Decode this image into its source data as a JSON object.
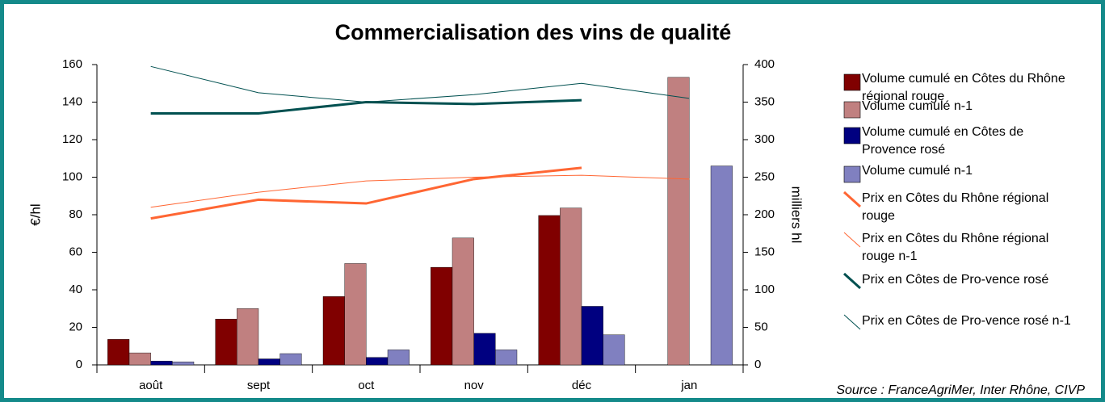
{
  "chart_data": {
    "type": "bar-line",
    "title": "Commercialisation des vins de qualité",
    "source": "Source : FranceAgriMer, Inter Rhône, CIVP",
    "ylabel": "€/hl",
    "y2label": "milliers hl",
    "categories": [
      "août",
      "sept",
      "oct",
      "nov",
      "déc",
      "jan"
    ],
    "ylim": [
      0,
      160
    ],
    "yticks": [
      0,
      20,
      40,
      60,
      80,
      100,
      120,
      140,
      160
    ],
    "y2lim": [
      0,
      400
    ],
    "y2ticks": [
      0,
      50,
      100,
      150,
      200,
      250,
      300,
      350,
      400
    ],
    "series": [
      {
        "name": "Volume cumulé en Côtes du Rhône régional rouge",
        "type": "bar",
        "axis": "y2",
        "color": "#800000",
        "values": [
          34,
          61,
          91,
          130,
          199,
          null
        ]
      },
      {
        "name": "Volume cumulé n-1",
        "type": "bar",
        "axis": "y2",
        "color": "#c08080",
        "values": [
          16,
          75,
          135,
          169,
          209,
          383
        ]
      },
      {
        "name": "Volume cumulé en Côtes de Provence rosé",
        "type": "bar",
        "axis": "y2",
        "color": "#000080",
        "values": [
          5,
          8,
          10,
          42,
          78,
          null
        ]
      },
      {
        "name": "Volume cumulé n-1",
        "type": "bar",
        "axis": "y2",
        "color": "#8080c0",
        "values": [
          4,
          15,
          20,
          20,
          40,
          265
        ]
      },
      {
        "name": "Prix en Côtes du Rhône régional rouge",
        "type": "line",
        "width": 3,
        "color": "#ff6633",
        "values": [
          78,
          88,
          86,
          99,
          105,
          null
        ]
      },
      {
        "name": "Prix en Côtes du Rhône régional rouge  n-1",
        "type": "line",
        "width": 1,
        "color": "#ff6633",
        "values": [
          84,
          92,
          98,
          100,
          101,
          99
        ]
      },
      {
        "name": "Prix en Côtes de Pro-vence rosé",
        "type": "line",
        "width": 3,
        "color": "#005050",
        "values": [
          134,
          134,
          140,
          139,
          141,
          null
        ]
      },
      {
        "name": "Prix en Côtes de Pro-vence rosé n-1",
        "type": "line",
        "width": 1,
        "color": "#005050",
        "values": [
          159,
          145,
          140,
          144,
          150,
          142
        ]
      }
    ]
  }
}
